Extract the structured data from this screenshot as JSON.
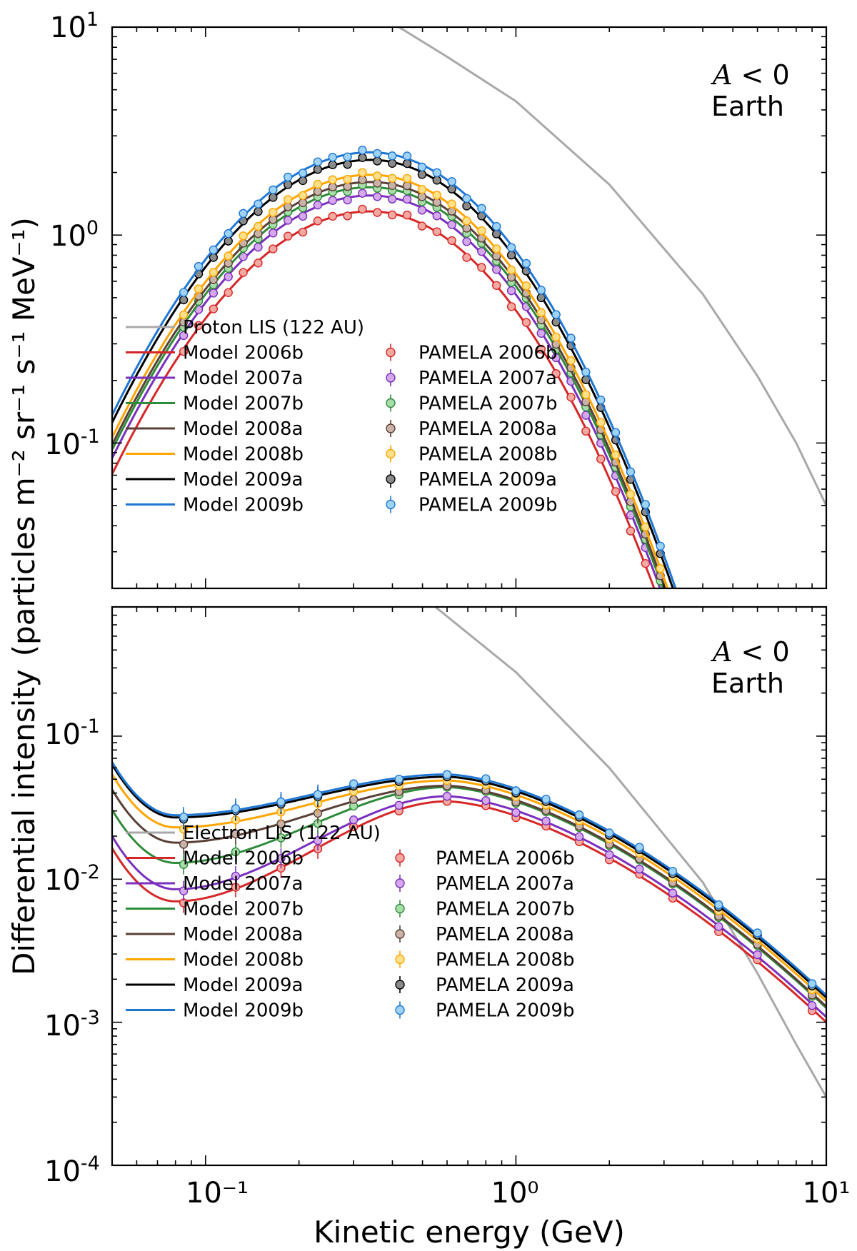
{
  "figure": {
    "ylabel_main": "Differential intensity",
    "ylabel_units": "(particles m⁻² sr⁻¹ s⁻¹ MeV⁻¹)",
    "xlabel": "Kinetic energy (GeV)"
  },
  "colors": {
    "2006b": "#d62728",
    "2007a": "#7b2fbe",
    "2007b": "#2e8b3a",
    "2008a": "#5a4036",
    "2008b": "#ffa500",
    "2009a": "#000000",
    "2009b": "#1f77d4",
    "lis": "#a8a8a8",
    "data_fill": {
      "2006b": "#f2a9a1",
      "2007a": "#d4a8ea",
      "2007b": "#a8dca8",
      "2008a": "#c9b2a8",
      "2008b": "#ffe08a",
      "2009a": "#8a8a8a",
      "2009b": "#9fd3f5"
    }
  },
  "chart_data": [
    {
      "type": "line",
      "panel": "top",
      "xscale": "log",
      "yscale": "log",
      "xlim": [
        0.05,
        10
      ],
      "ylim": [
        0.02,
        10
      ],
      "x_ticks": [
        "10⁻¹",
        "10⁰",
        "10¹"
      ],
      "y_ticks": [
        {
          "base": "10",
          "exp": "1"
        },
        {
          "base": "10",
          "exp": "0"
        },
        {
          "base": "10",
          "exp": "-1"
        }
      ],
      "annotation": {
        "line1_var": "A",
        "line1_rest": " < 0",
        "line2": "Earth"
      },
      "lis": {
        "label": "Proton LIS (122 AU)",
        "x": [
          0.42,
          0.6,
          1.0,
          2.0,
          4.0,
          6.0,
          8.0,
          10.0
        ],
        "y": [
          10.0,
          7.2,
          4.4,
          1.75,
          0.52,
          0.21,
          0.1,
          0.05
        ]
      },
      "series": [
        {
          "key": "2006b",
          "model_label": "Model 2006b",
          "data_label": "PAMELA 2006b",
          "peak": 1.3
        },
        {
          "key": "2007a",
          "model_label": "Model 2007a",
          "data_label": "PAMELA 2007a",
          "peak": 1.55
        },
        {
          "key": "2007b",
          "model_label": "Model 2007b",
          "data_label": "PAMELA 2007b",
          "peak": 1.7
        },
        {
          "key": "2008a",
          "model_label": "Model 2008a",
          "data_label": "PAMELA 2008a",
          "peak": 1.8
        },
        {
          "key": "2008b",
          "model_label": "Model 2008b",
          "data_label": "PAMELA 2008b",
          "peak": 1.95
        },
        {
          "key": "2009a",
          "model_label": "Model 2009a",
          "data_label": "PAMELA 2009a",
          "peak": 2.3
        },
        {
          "key": "2009b",
          "model_label": "Model 2009b",
          "data_label": "PAMELA 2009b",
          "peak": 2.5
        }
      ]
    },
    {
      "type": "line",
      "panel": "bottom",
      "xscale": "log",
      "yscale": "log",
      "xlim": [
        0.05,
        10
      ],
      "ylim": [
        0.0001,
        0.8
      ],
      "x_ticks": [
        "10⁻¹",
        "10⁰",
        "10¹"
      ],
      "y_ticks": [
        {
          "base": "10",
          "exp": "-1"
        },
        {
          "base": "10",
          "exp": "-2"
        },
        {
          "base": "10",
          "exp": "-3"
        },
        {
          "base": "10",
          "exp": "-4"
        }
      ],
      "annotation": {
        "line1_var": "A",
        "line1_rest": " < 0",
        "line2": "Earth"
      },
      "lis": {
        "label": "Electron LIS (122 AU)",
        "x": [
          0.55,
          1.0,
          2.0,
          4.0,
          6.0,
          8.0,
          10.0
        ],
        "y": [
          0.8,
          0.28,
          0.06,
          0.0095,
          0.0022,
          0.0007,
          0.0003
        ]
      },
      "series": [
        {
          "key": "2006b",
          "model_label": "Model 2006b",
          "data_label": "PAMELA 2006b",
          "min": 0.007,
          "peak": 0.035
        },
        {
          "key": "2007a",
          "model_label": "Model 2007a",
          "data_label": "PAMELA 2007a",
          "min": 0.0085,
          "peak": 0.038
        },
        {
          "key": "2007b",
          "model_label": "Model 2007b",
          "data_label": "PAMELA 2007b",
          "min": 0.013,
          "peak": 0.044
        },
        {
          "key": "2008a",
          "model_label": "Model 2008a",
          "data_label": "PAMELA 2008a",
          "min": 0.018,
          "peak": 0.045
        },
        {
          "key": "2008b",
          "model_label": "Model 2008b",
          "data_label": "PAMELA 2008b",
          "min": 0.023,
          "peak": 0.049
        },
        {
          "key": "2009a",
          "model_label": "Model 2009a",
          "data_label": "PAMELA 2009a",
          "min": 0.027,
          "peak": 0.052
        },
        {
          "key": "2009b",
          "model_label": "Model 2009b",
          "data_label": "PAMELA 2009b",
          "min": 0.028,
          "peak": 0.054
        }
      ]
    }
  ]
}
